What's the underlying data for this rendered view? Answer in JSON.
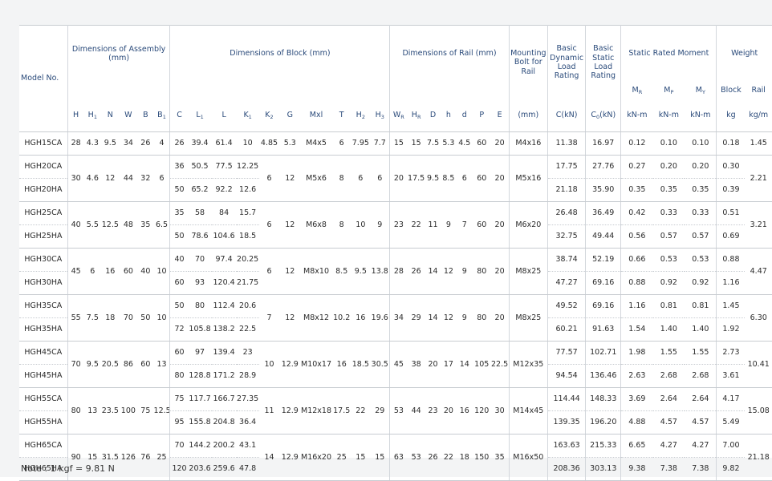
{
  "header": {
    "model_no": "Model No.",
    "dim_assembly": "Dimensions of Assembly (mm)",
    "dim_block": "Dimensions of Block (mm)",
    "dim_rail": "Dimensions of Rail (mm)",
    "mounting_bolt": "Mounting Bolt for Rail",
    "dynamic_load": "Basic Dynamic Load Rating",
    "static_load": "Basic Static Load Rating",
    "static_moment": "Static Rated Moment",
    "weight": "Weight",
    "m_r": "M",
    "m_r_sub": "R",
    "m_p": "M",
    "m_p_sub": "P",
    "m_y": "M",
    "m_y_sub": "Y",
    "block": "Block",
    "rail": "Rail",
    "sym": {
      "H": "H",
      "H1": "H",
      "H1_sub": "1",
      "N": "N",
      "W": "W",
      "B": "B",
      "B1": "B",
      "B1_sub": "1",
      "C": "C",
      "L1": "L",
      "L1_sub": "1",
      "L": "L",
      "K1": "K",
      "K1_sub": "1",
      "K2": "K",
      "K2_sub": "2",
      "G": "G",
      "Mxl": "Mxl",
      "T": "T",
      "H2": "H",
      "H2_sub": "2",
      "H3": "H",
      "H3_sub": "3",
      "WR": "W",
      "WR_sub": "R",
      "HR": "H",
      "HR_sub": "R",
      "D": "D",
      "h": "h",
      "d": "d",
      "P": "P",
      "E": "E",
      "bolt_unit": "(mm)",
      "C_unit": "C(kN)",
      "C0_unit": "C",
      "C0_sub": "0",
      "C0_unit_tail": "(kN)",
      "knm_r": "kN-m",
      "knm_p": "kN-m",
      "knm_y": "kN-m",
      "kg": "kg",
      "kgm": "kg/m"
    }
  },
  "groups": [
    {
      "H": "28",
      "H1": "4.3",
      "N": "9.5",
      "W": "34",
      "B": "26",
      "B1": "4",
      "K2": "4.85",
      "G": "5.3",
      "Mxl": "M4x5",
      "T": "6",
      "H2": "7.95",
      "H3": "7.7",
      "WR": "15",
      "HR": "15",
      "D": "7.5",
      "h": "5.3",
      "d": "4.5",
      "P": "60",
      "E": "20",
      "bolt": "M4x16",
      "rail_kgm": "1.45",
      "rows": [
        {
          "model": "HGH15CA",
          "C": "26",
          "L1": "39.4",
          "L": "61.4",
          "K1": "10",
          "Cdyn": "11.38",
          "C0": "16.97",
          "MR": "0.12",
          "MP": "0.10",
          "MY": "0.10",
          "block": "0.18"
        }
      ]
    },
    {
      "H": "30",
      "H1": "4.6",
      "N": "12",
      "W": "44",
      "B": "32",
      "B1": "6",
      "K2": "6",
      "G": "12",
      "Mxl": "M5x6",
      "T": "8",
      "H2": "6",
      "H3": "6",
      "WR": "20",
      "HR": "17.5",
      "D": "9.5",
      "h": "8.5",
      "d": "6",
      "P": "60",
      "E": "20",
      "bolt": "M5x16",
      "rail_kgm": "2.21",
      "rows": [
        {
          "model": "HGH20CA",
          "C": "36",
          "L1": "50.5",
          "L": "77.5",
          "K1": "12.25",
          "Cdyn": "17.75",
          "C0": "27.76",
          "MR": "0.27",
          "MP": "0.20",
          "MY": "0.20",
          "block": "0.30"
        },
        {
          "model": "HGH20HA",
          "C": "50",
          "L1": "65.2",
          "L": "92.2",
          "K1": "12.6",
          "Cdyn": "21.18",
          "C0": "35.90",
          "MR": "0.35",
          "MP": "0.35",
          "MY": "0.35",
          "block": "0.39"
        }
      ]
    },
    {
      "H": "40",
      "H1": "5.5",
      "N": "12.5",
      "W": "48",
      "B": "35",
      "B1": "6.5",
      "K2": "6",
      "G": "12",
      "Mxl": "M6x8",
      "T": "8",
      "H2": "10",
      "H3": "9",
      "WR": "23",
      "HR": "22",
      "D": "11",
      "h": "9",
      "d": "7",
      "P": "60",
      "E": "20",
      "bolt": "M6x20",
      "rail_kgm": "3.21",
      "rows": [
        {
          "model": "HGH25CA",
          "C": "35",
          "L1": "58",
          "L": "84",
          "K1": "15.7",
          "Cdyn": "26.48",
          "C0": "36.49",
          "MR": "0.42",
          "MP": "0.33",
          "MY": "0.33",
          "block": "0.51"
        },
        {
          "model": "HGH25HA",
          "C": "50",
          "L1": "78.6",
          "L": "104.6",
          "K1": "18.5",
          "Cdyn": "32.75",
          "C0": "49.44",
          "MR": "0.56",
          "MP": "0.57",
          "MY": "0.57",
          "block": "0.69"
        }
      ]
    },
    {
      "H": "45",
      "H1": "6",
      "N": "16",
      "W": "60",
      "B": "40",
      "B1": "10",
      "K2": "6",
      "G": "12",
      "Mxl": "M8x10",
      "T": "8.5",
      "H2": "9.5",
      "H3": "13.8",
      "WR": "28",
      "HR": "26",
      "D": "14",
      "h": "12",
      "d": "9",
      "P": "80",
      "E": "20",
      "bolt": "M8x25",
      "rail_kgm": "4.47",
      "rows": [
        {
          "model": "HGH30CA",
          "C": "40",
          "L1": "70",
          "L": "97.4",
          "K1": "20.25",
          "Cdyn": "38.74",
          "C0": "52.19",
          "MR": "0.66",
          "MP": "0.53",
          "MY": "0.53",
          "block": "0.88"
        },
        {
          "model": "HGH30HA",
          "C": "60",
          "L1": "93",
          "L": "120.4",
          "K1": "21.75",
          "Cdyn": "47.27",
          "C0": "69.16",
          "MR": "0.88",
          "MP": "0.92",
          "MY": "0.92",
          "block": "1.16"
        }
      ]
    },
    {
      "H": "55",
      "H1": "7.5",
      "N": "18",
      "W": "70",
      "B": "50",
      "B1": "10",
      "K2": "7",
      "G": "12",
      "Mxl": "M8x12",
      "T": "10.2",
      "H2": "16",
      "H3": "19.6",
      "WR": "34",
      "HR": "29",
      "D": "14",
      "h": "12",
      "d": "9",
      "P": "80",
      "E": "20",
      "bolt": "M8x25",
      "rail_kgm": "6.30",
      "rows": [
        {
          "model": "HGH35CA",
          "C": "50",
          "L1": "80",
          "L": "112.4",
          "K1": "20.6",
          "Cdyn": "49.52",
          "C0": "69.16",
          "MR": "1.16",
          "MP": "0.81",
          "MY": "0.81",
          "block": "1.45"
        },
        {
          "model": "HGH35HA",
          "C": "72",
          "L1": "105.8",
          "L": "138.2",
          "K1": "22.5",
          "Cdyn": "60.21",
          "C0": "91.63",
          "MR": "1.54",
          "MP": "1.40",
          "MY": "1.40",
          "block": "1.92"
        }
      ]
    },
    {
      "H": "70",
      "H1": "9.5",
      "N": "20.5",
      "W": "86",
      "B": "60",
      "B1": "13",
      "K2": "10",
      "G": "12.9",
      "Mxl": "M10x17",
      "T": "16",
      "H2": "18.5",
      "H3": "30.5",
      "WR": "45",
      "HR": "38",
      "D": "20",
      "h": "17",
      "d": "14",
      "P": "105",
      "E": "22.5",
      "bolt": "M12x35",
      "rail_kgm": "10.41",
      "rows": [
        {
          "model": "HGH45CA",
          "C": "60",
          "L1": "97",
          "L": "139.4",
          "K1": "23",
          "Cdyn": "77.57",
          "C0": "102.71",
          "MR": "1.98",
          "MP": "1.55",
          "MY": "1.55",
          "block": "2.73"
        },
        {
          "model": "HGH45HA",
          "C": "80",
          "L1": "128.8",
          "L": "171.2",
          "K1": "28.9",
          "Cdyn": "94.54",
          "C0": "136.46",
          "MR": "2.63",
          "MP": "2.68",
          "MY": "2.68",
          "block": "3.61"
        }
      ]
    },
    {
      "H": "80",
      "H1": "13",
      "N": "23.5",
      "W": "100",
      "B": "75",
      "B1": "12.5",
      "K2": "11",
      "G": "12.9",
      "Mxl": "M12x18",
      "T": "17.5",
      "H2": "22",
      "H3": "29",
      "WR": "53",
      "HR": "44",
      "D": "23",
      "h": "20",
      "d": "16",
      "P": "120",
      "E": "30",
      "bolt": "M14x45",
      "rail_kgm": "15.08",
      "rows": [
        {
          "model": "HGH55CA",
          "C": "75",
          "L1": "117.7",
          "L": "166.7",
          "K1": "27.35",
          "Cdyn": "114.44",
          "C0": "148.33",
          "MR": "3.69",
          "MP": "2.64",
          "MY": "2.64",
          "block": "4.17"
        },
        {
          "model": "HGH55HA",
          "C": "95",
          "L1": "155.8",
          "L": "204.8",
          "K1": "36.4",
          "Cdyn": "139.35",
          "C0": "196.20",
          "MR": "4.88",
          "MP": "4.57",
          "MY": "4.57",
          "block": "5.49"
        }
      ]
    },
    {
      "H": "90",
      "H1": "15",
      "N": "31.5",
      "W": "126",
      "B": "76",
      "B1": "25",
      "K2": "14",
      "G": "12.9",
      "Mxl": "M16x20",
      "T": "25",
      "H2": "15",
      "H3": "15",
      "WR": "63",
      "HR": "53",
      "D": "26",
      "h": "22",
      "d": "18",
      "P": "150",
      "E": "35",
      "bolt": "M16x50",
      "rail_kgm": "21.18",
      "rows": [
        {
          "model": "HGH65CA",
          "C": "70",
          "L1": "144.2",
          "L": "200.2",
          "K1": "43.1",
          "Cdyn": "163.63",
          "C0": "215.33",
          "MR": "6.65",
          "MP": "4.27",
          "MY": "4.27",
          "block": "7.00"
        },
        {
          "model": "HGH65HA",
          "C": "120",
          "L1": "203.6",
          "L": "259.6",
          "K1": "47.8",
          "Cdyn": "208.36",
          "C0": "303.13",
          "MR": "9.38",
          "MP": "7.38",
          "MY": "7.38",
          "block": "9.82"
        }
      ]
    }
  ],
  "note": "Note : 1 kgf = 9.81 N"
}
